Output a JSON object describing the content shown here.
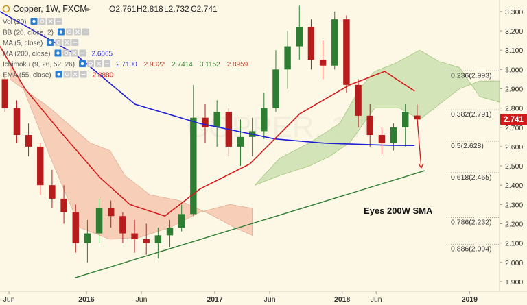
{
  "header": {
    "symbol": "Copper, 1W, FXCM",
    "open": "O2.761",
    "high": "H2.818",
    "low": "L2.732",
    "close": "C2.741"
  },
  "legend": [
    {
      "label": "Vol (20)",
      "values": [],
      "colors": []
    },
    {
      "label": "BB (20, close, 2)",
      "values": [],
      "colors": []
    },
    {
      "label": "MA (5, close)",
      "values": [],
      "colors": []
    },
    {
      "label": "MA (200, close)",
      "values": [
        "2.6065"
      ],
      "colors": [
        "#2f2fd6"
      ]
    },
    {
      "label": "Ichimoku (9, 26, 52, 26)",
      "values": [
        "2.7100",
        "2.9322",
        "2.7414",
        "3.1152",
        "2.8959"
      ],
      "colors": [
        "#2f2fd6",
        "#c0392b",
        "#2e7d32",
        "#2e7d32",
        "#c0392b"
      ]
    },
    {
      "label": "EMA (55, close)",
      "values": [
        "2.8880"
      ],
      "colors": [
        "#d11a1a"
      ]
    }
  ],
  "watermark": "COPPER, 1W",
  "colors": {
    "background": "#fdf8e6",
    "up_candle": "#2e7d32",
    "down_candle": "#b71c1c",
    "sma200": "#1f1fd6",
    "ema55": "#d11a1a",
    "trendline": "#2e7d32",
    "cloud_bull": "#cfe3b4",
    "cloud_bear": "#f6c9b0",
    "price_tag": "#d11a1a"
  },
  "chart_data": {
    "type": "candlestick",
    "title": "Copper, 1W, FXCM",
    "xlabel": "",
    "ylabel": "",
    "ylim": [
      1.85,
      3.36
    ],
    "y_ticks": [
      "3.300",
      "3.200",
      "3.100",
      "3.000",
      "2.900",
      "2.800",
      "2.700",
      "2.600",
      "2.500",
      "2.400",
      "2.300",
      "2.200",
      "2.100",
      "2.000",
      "1.900"
    ],
    "x_ticks": [
      {
        "label": "Jun",
        "bold": false
      },
      {
        "label": "2016",
        "bold": true
      },
      {
        "label": "Jun",
        "bold": false
      },
      {
        "label": "2017",
        "bold": true
      },
      {
        "label": "Jun",
        "bold": false
      },
      {
        "label": "2018",
        "bold": true
      },
      {
        "label": "Jun",
        "bold": false
      },
      {
        "label": "2019",
        "bold": true
      }
    ],
    "current_price_label": "2.741",
    "current_price": 2.741,
    "fib_levels": [
      {
        "label": "0.236(2.993)",
        "value": 2.993
      },
      {
        "label": "0.382(2.791)",
        "value": 2.791
      },
      {
        "label": "0.5(2.628)",
        "value": 2.628
      },
      {
        "label": "0.618(2.465)",
        "value": 2.465
      },
      {
        "label": "0.786(2.232)",
        "value": 2.232
      },
      {
        "label": "0.886(2.094)",
        "value": 2.094
      }
    ],
    "annotation": "Eyes 200W SMA",
    "series": [
      {
        "name": "MA (200, close)",
        "points": [
          [
            0,
            3.3
          ],
          [
            0.15,
            3.08
          ],
          [
            0.27,
            2.82
          ],
          [
            0.4,
            2.72
          ],
          [
            0.55,
            2.64
          ],
          [
            0.65,
            2.618
          ],
          [
            0.78,
            2.607
          ],
          [
            0.83,
            2.606
          ]
        ]
      },
      {
        "name": "EMA (55, close)",
        "points": [
          [
            0,
            3.12
          ],
          [
            0.05,
            2.9
          ],
          [
            0.12,
            2.68
          ],
          [
            0.2,
            2.44
          ],
          [
            0.26,
            2.3
          ],
          [
            0.33,
            2.24
          ],
          [
            0.4,
            2.38
          ],
          [
            0.5,
            2.51
          ],
          [
            0.6,
            2.77
          ],
          [
            0.7,
            2.92
          ],
          [
            0.77,
            2.99
          ],
          [
            0.83,
            2.888
          ]
        ]
      }
    ],
    "trendline": [
      [
        0.15,
        1.92
      ],
      [
        0.85,
        2.475
      ]
    ],
    "candles_approx": [
      [
        2.95,
        2.98,
        2.78,
        2.8
      ],
      [
        2.8,
        2.84,
        2.62,
        2.66
      ],
      [
        2.66,
        2.72,
        2.55,
        2.6
      ],
      [
        2.6,
        2.62,
        2.35,
        2.4
      ],
      [
        2.4,
        2.48,
        2.28,
        2.33
      ],
      [
        2.33,
        2.4,
        2.2,
        2.26
      ],
      [
        2.26,
        2.3,
        2.05,
        2.1
      ],
      [
        2.1,
        2.22,
        2.0,
        2.15
      ],
      [
        2.15,
        2.33,
        2.1,
        2.28
      ],
      [
        2.28,
        2.32,
        2.18,
        2.24
      ],
      [
        2.24,
        2.26,
        2.1,
        2.15
      ],
      [
        2.15,
        2.22,
        2.05,
        2.12
      ],
      [
        2.12,
        2.2,
        2.04,
        2.1
      ],
      [
        2.1,
        2.18,
        2.02,
        2.14
      ],
      [
        2.14,
        2.22,
        2.08,
        2.18
      ],
      [
        2.18,
        2.3,
        2.16,
        2.25
      ],
      [
        2.25,
        2.92,
        2.24,
        2.75
      ],
      [
        2.75,
        2.82,
        2.62,
        2.7
      ],
      [
        2.7,
        2.84,
        2.6,
        2.78
      ],
      [
        2.78,
        2.8,
        2.55,
        2.6
      ],
      [
        2.6,
        2.74,
        2.5,
        2.65
      ],
      [
        2.65,
        2.75,
        2.55,
        2.68
      ],
      [
        2.68,
        2.88,
        2.64,
        2.8
      ],
      [
        2.8,
        3.1,
        2.78,
        3.0
      ],
      [
        3.0,
        3.2,
        2.9,
        3.12
      ],
      [
        3.12,
        3.33,
        3.05,
        3.22
      ],
      [
        3.22,
        3.26,
        3.0,
        3.05
      ],
      [
        3.05,
        3.15,
        2.95,
        3.02
      ],
      [
        3.02,
        3.3,
        3.0,
        3.26
      ],
      [
        3.26,
        3.28,
        2.88,
        2.92
      ],
      [
        2.92,
        2.95,
        2.7,
        2.76
      ],
      [
        2.76,
        2.82,
        2.6,
        2.66
      ],
      [
        2.66,
        2.7,
        2.56,
        2.62
      ],
      [
        2.62,
        2.72,
        2.58,
        2.7
      ],
      [
        2.7,
        2.82,
        2.6,
        2.78
      ],
      [
        2.761,
        2.818,
        2.732,
        2.741
      ]
    ]
  }
}
